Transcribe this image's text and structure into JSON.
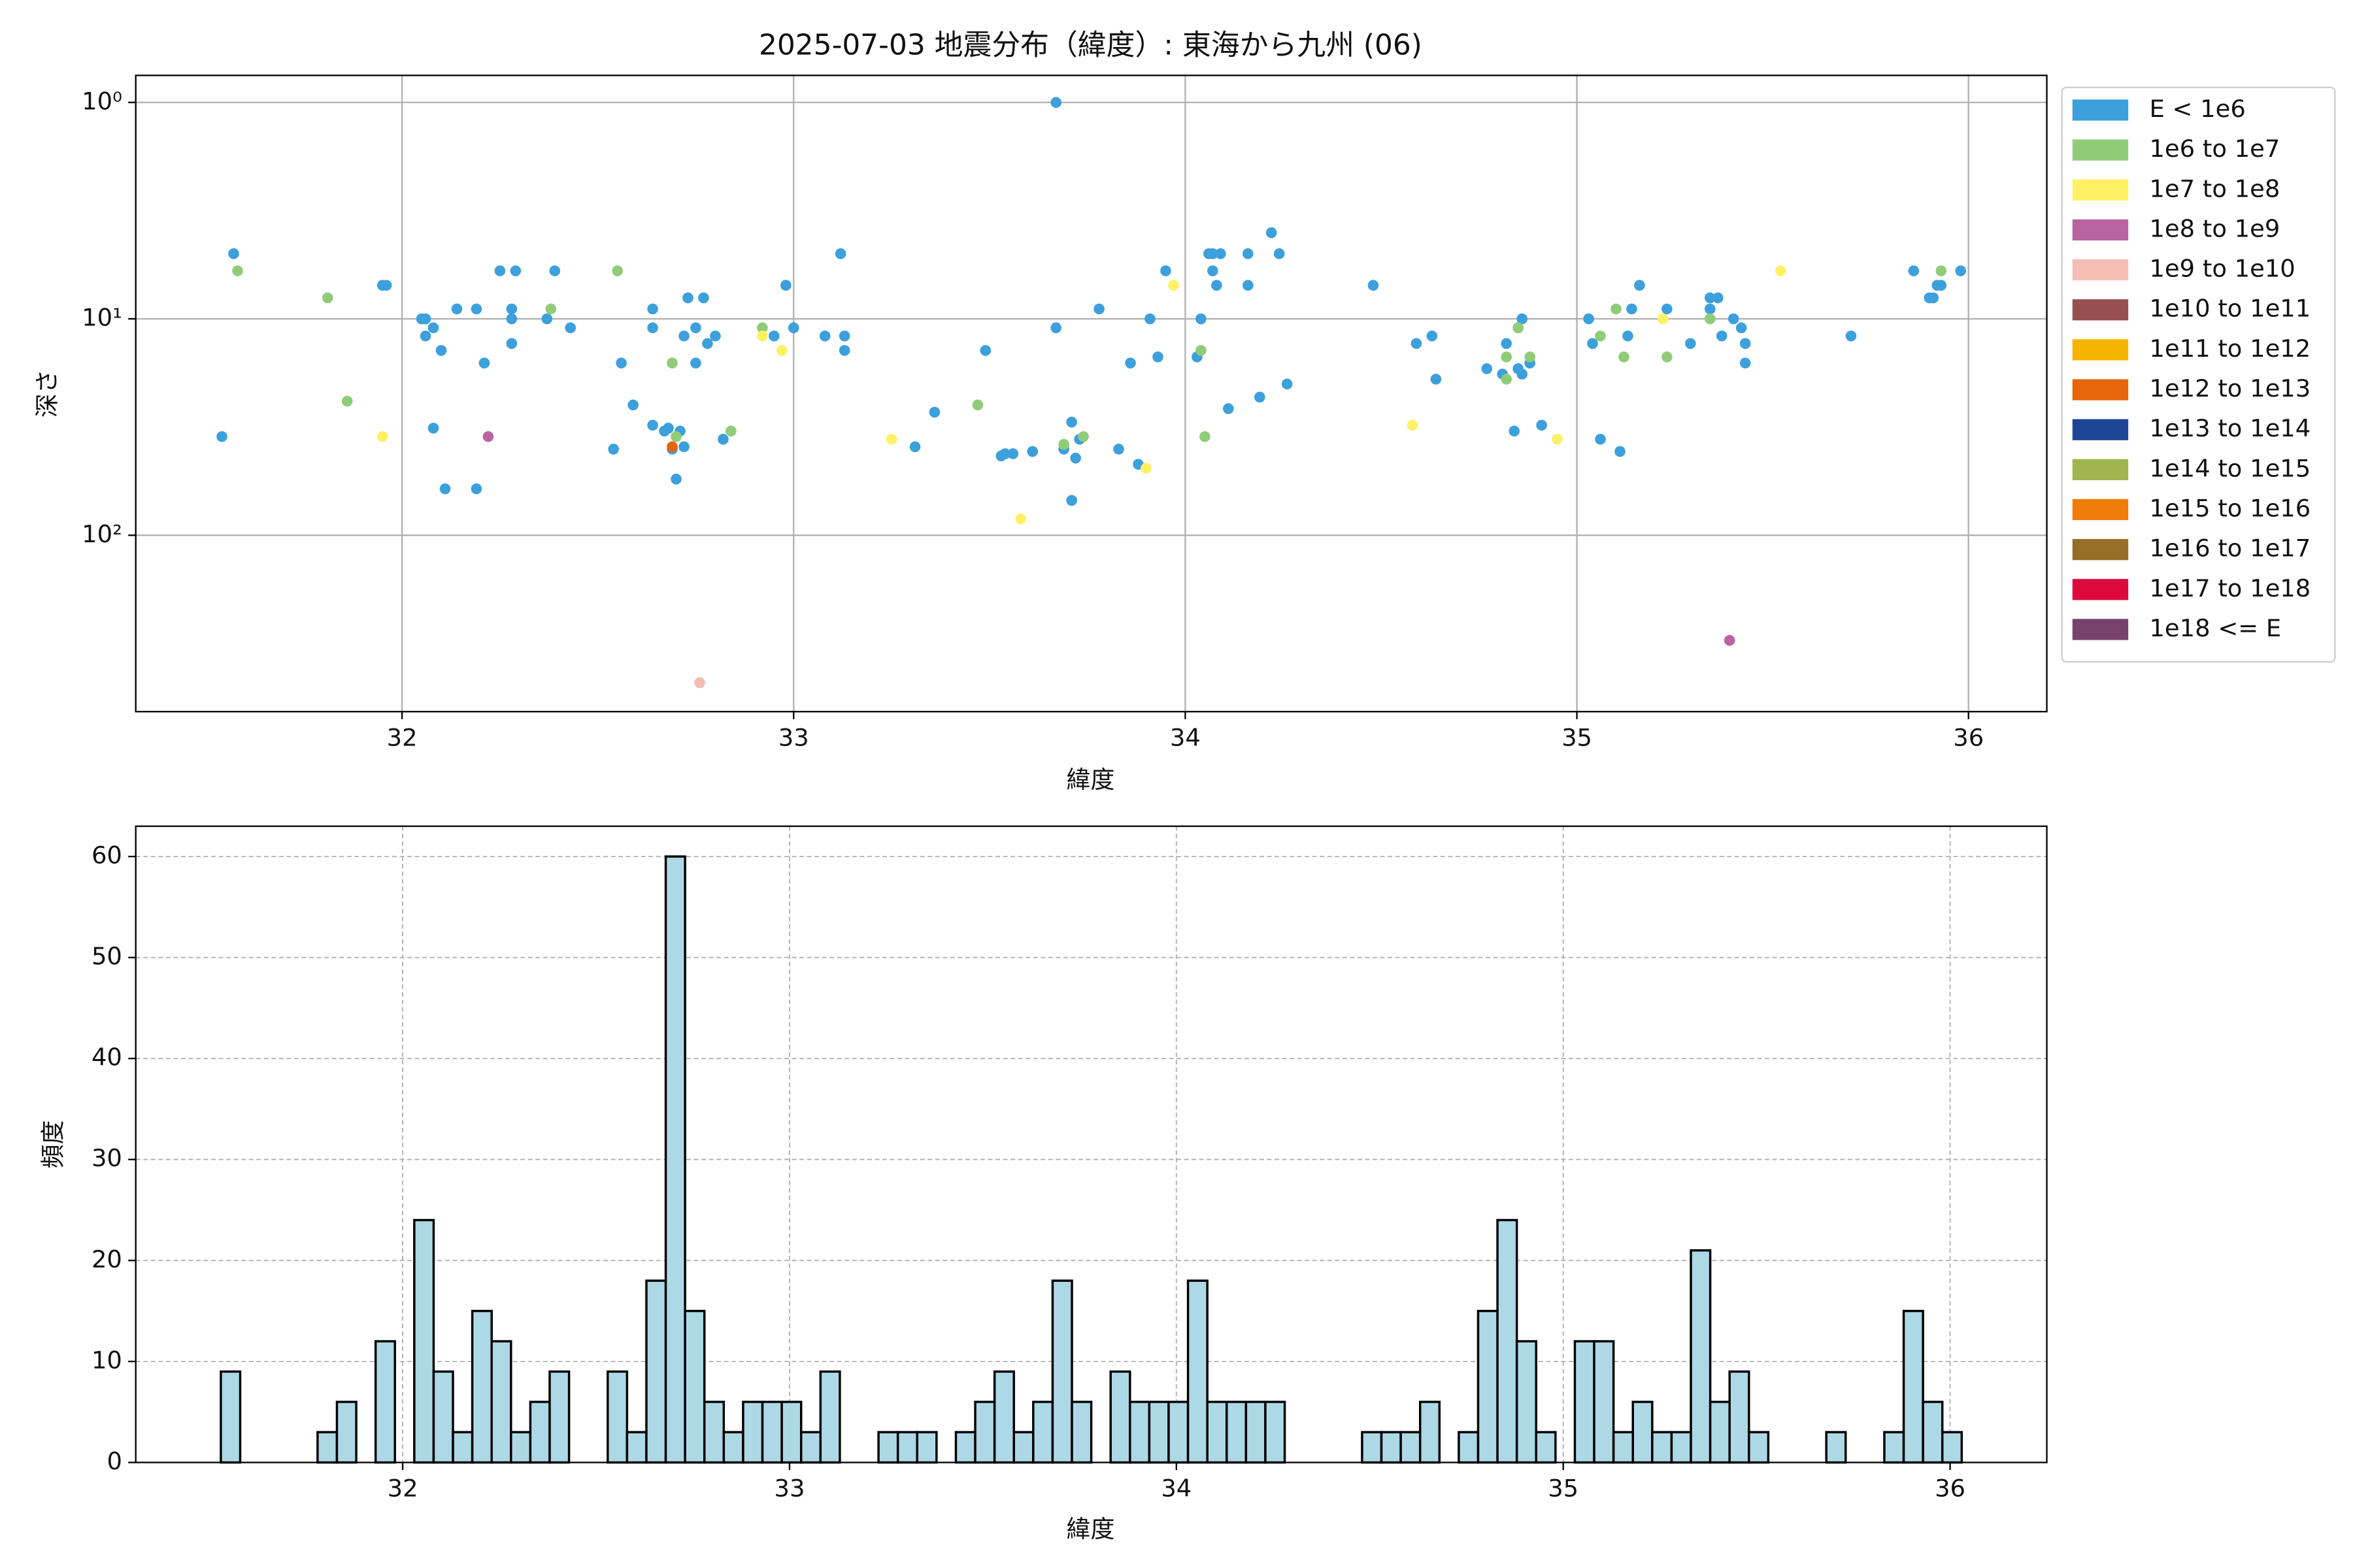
{
  "chart_data": [
    {
      "type": "scatter",
      "title": "2025-07-03 地震分布（緯度）: 東海から九州 (06)",
      "x_label": "緯度",
      "y_label": "深さ",
      "xlim": [
        31.32,
        36.2
      ],
      "xticks": [
        32,
        33,
        34,
        35,
        36
      ],
      "ylim": [
        653,
        0.75
      ],
      "yscale": "log",
      "yticks": [
        {
          "value": 1,
          "label": "10⁰"
        },
        {
          "value": 10,
          "label": "10¹"
        },
        {
          "value": 100,
          "label": "10²"
        }
      ],
      "grid": true,
      "legend": "outside-right",
      "series": [
        {
          "name": "E < 1e6",
          "color": "#3ca0dc",
          "x": [
            31.54,
            31.57,
            31.95,
            31.96,
            32.05,
            32.06,
            32.06,
            32.08,
            32.08,
            32.1,
            32.11,
            32.14,
            32.19,
            32.19,
            32.21,
            32.25,
            32.28,
            32.28,
            32.28,
            32.29,
            32.37,
            32.39,
            32.43,
            32.54,
            32.56,
            32.59,
            32.64,
            32.64,
            32.64,
            32.67,
            32.68,
            32.69,
            32.7,
            32.71,
            32.72,
            32.73,
            32.72,
            32.75,
            32.75,
            32.77,
            32.78,
            32.8,
            32.82,
            32.95,
            32.98,
            33.0,
            33.08,
            33.12,
            33.13,
            33.13,
            33.36,
            33.31,
            33.49,
            33.53,
            33.54,
            33.56,
            33.61,
            33.67,
            33.67,
            33.69,
            33.71,
            33.71,
            33.72,
            33.73,
            33.78,
            33.83,
            33.86,
            33.88,
            33.91,
            33.93,
            33.95,
            34.03,
            34.04,
            34.06,
            34.07,
            34.08,
            34.07,
            34.09,
            34.11,
            34.16,
            34.16,
            34.19,
            34.22,
            34.24,
            34.26,
            34.48,
            34.59,
            34.63,
            34.64,
            34.77,
            34.81,
            34.82,
            34.84,
            34.85,
            34.85,
            34.86,
            34.86,
            34.88,
            34.91,
            35.03,
            35.04,
            35.06,
            35.11,
            35.13,
            35.14,
            35.16,
            35.23,
            35.29,
            35.34,
            35.34,
            35.36,
            35.37,
            35.4,
            35.42,
            35.43,
            35.43,
            35.7,
            35.86,
            35.9,
            35.91,
            35.92,
            35.93,
            35.98
          ],
          "values": [
            35,
            5,
            7,
            7,
            10,
            10,
            12,
            11,
            32,
            14,
            61,
            9,
            9,
            61,
            16,
            6,
            9,
            10,
            13,
            6,
            10,
            6,
            11,
            40,
            16,
            25,
            9,
            11,
            31,
            33,
            32,
            40,
            55,
            33,
            12,
            8,
            39,
            11,
            16,
            8,
            13,
            12,
            36,
            12,
            7,
            11,
            12,
            5,
            12,
            14,
            27,
            39,
            14,
            43,
            42,
            42,
            41,
            1,
            11,
            40,
            69,
            30,
            44,
            36,
            9,
            40,
            16,
            47,
            10,
            15,
            6,
            15,
            10,
            5,
            6,
            7,
            5,
            5,
            26,
            7,
            5,
            23,
            4,
            5,
            20,
            7,
            13,
            12,
            19,
            17,
            18,
            13,
            33,
            17,
            11,
            10,
            18,
            16,
            31,
            10,
            13,
            36,
            41,
            12,
            9,
            7,
            9,
            13,
            8,
            9,
            8,
            12,
            10,
            11,
            13,
            16,
            12,
            6,
            8,
            8,
            7,
            7,
            6
          ]
        },
        {
          "name": "1e6 to 1e7",
          "color": "#90cc78",
          "x": [
            31.58,
            31.81,
            31.86,
            32.38,
            32.55,
            32.69,
            32.7,
            32.84,
            32.92,
            33.47,
            33.69,
            33.74,
            34.04,
            34.05,
            34.82,
            34.82,
            34.85,
            34.88,
            35.06,
            35.1,
            35.12,
            35.23,
            35.34,
            35.93
          ],
          "values": [
            6,
            8,
            24,
            9,
            6,
            16,
            35,
            33,
            11,
            25,
            38,
            35,
            14,
            35,
            15,
            19,
            11,
            15,
            12,
            9,
            15,
            15,
            10,
            6
          ]
        },
        {
          "name": "1e7 to 1e8",
          "color": "#fff064",
          "x": [
            31.95,
            32.92,
            32.97,
            33.25,
            33.58,
            33.9,
            33.97,
            34.58,
            34.95,
            35.22,
            35.52
          ],
          "values": [
            35,
            12,
            14,
            36,
            84,
            49,
            7,
            31,
            36,
            10,
            6
          ]
        },
        {
          "name": "1e8 to 1e9",
          "color": "#b964a0",
          "x": [
            32.22,
            35.39
          ],
          "values": [
            35,
            306
          ]
        },
        {
          "name": "1e9 to 1e10",
          "color": "#f5bcb4",
          "x": [
            32.76
          ],
          "values": [
            480
          ]
        },
        {
          "name": "1e10 to 1e11",
          "color": "#965050",
          "x": [],
          "values": []
        },
        {
          "name": "1e11 to 1e12",
          "color": "#f5b400",
          "x": [],
          "values": []
        },
        {
          "name": "1e12 to 1e13",
          "color": "#e6640a",
          "x": [
            32.69
          ],
          "values": [
            39
          ]
        },
        {
          "name": "1e13 to 1e14",
          "color": "#1e4696",
          "x": [],
          "values": []
        },
        {
          "name": "1e14 to 1e15",
          "color": "#a0b450",
          "x": [],
          "values": []
        },
        {
          "name": "1e15 to 1e16",
          "color": "#f07d0a",
          "x": [],
          "values": []
        },
        {
          "name": "1e16 to 1e17",
          "color": "#966e28",
          "x": [],
          "values": []
        },
        {
          "name": "1e17 to 1e18",
          "color": "#dc0a3c",
          "x": [],
          "values": []
        },
        {
          "name": "1e18 <= E",
          "color": "#78416e",
          "x": [],
          "values": []
        }
      ]
    },
    {
      "type": "histogram",
      "x_label": "緯度",
      "y_label": "頻度",
      "xlim": [
        31.31,
        36.25
      ],
      "xticks": [
        32,
        33,
        34,
        35,
        36
      ],
      "ylim": [
        0,
        63
      ],
      "yticks": [
        0,
        10,
        20,
        30,
        40,
        50,
        60
      ],
      "grid": true,
      "color": "#add8e6",
      "edgecolor": "#000000",
      "bins": [
        31.53,
        31.58,
        31.63,
        31.68,
        31.73,
        31.78,
        31.83,
        31.88,
        31.93,
        31.98,
        32.03,
        32.08,
        32.13,
        32.18,
        32.23,
        32.28,
        32.33,
        32.38,
        32.43,
        32.48,
        32.53,
        32.58,
        32.63,
        32.68,
        32.73,
        32.78,
        32.83,
        32.88,
        32.93,
        32.98,
        33.03,
        33.08,
        33.13,
        33.18,
        33.23,
        33.28,
        33.33,
        33.38,
        33.43,
        33.48,
        33.53,
        33.58,
        33.63,
        33.68,
        33.73,
        33.78,
        33.83,
        33.88,
        33.93,
        33.98,
        34.03,
        34.08,
        34.13,
        34.18,
        34.23,
        34.28,
        34.33,
        34.38,
        34.43,
        34.48,
        34.53,
        34.58,
        34.63,
        34.68,
        34.73,
        34.78,
        34.83,
        34.88,
        34.93,
        34.98,
        35.03,
        35.08,
        35.13,
        35.18,
        35.23,
        35.28,
        35.33,
        35.38,
        35.43,
        35.48,
        35.53,
        35.58,
        35.63,
        35.68,
        35.73,
        35.78,
        35.83,
        35.88,
        35.93,
        35.98,
        36.03
      ],
      "values": [
        9,
        0,
        0,
        0,
        0,
        3,
        6,
        0,
        12,
        0,
        24,
        9,
        3,
        15,
        12,
        3,
        6,
        9,
        0,
        0,
        9,
        3,
        18,
        60,
        15,
        6,
        3,
        6,
        6,
        6,
        3,
        9,
        0,
        0,
        3,
        3,
        3,
        0,
        3,
        6,
        9,
        3,
        6,
        18,
        6,
        0,
        9,
        6,
        6,
        6,
        18,
        6,
        6,
        6,
        6,
        0,
        0,
        0,
        0,
        3,
        3,
        3,
        6,
        0,
        3,
        15,
        24,
        12,
        3,
        0,
        12,
        12,
        3,
        6,
        3,
        3,
        21,
        6,
        9,
        3,
        0,
        0,
        0,
        3,
        0,
        0,
        3,
        15,
        6,
        3
      ]
    }
  ]
}
